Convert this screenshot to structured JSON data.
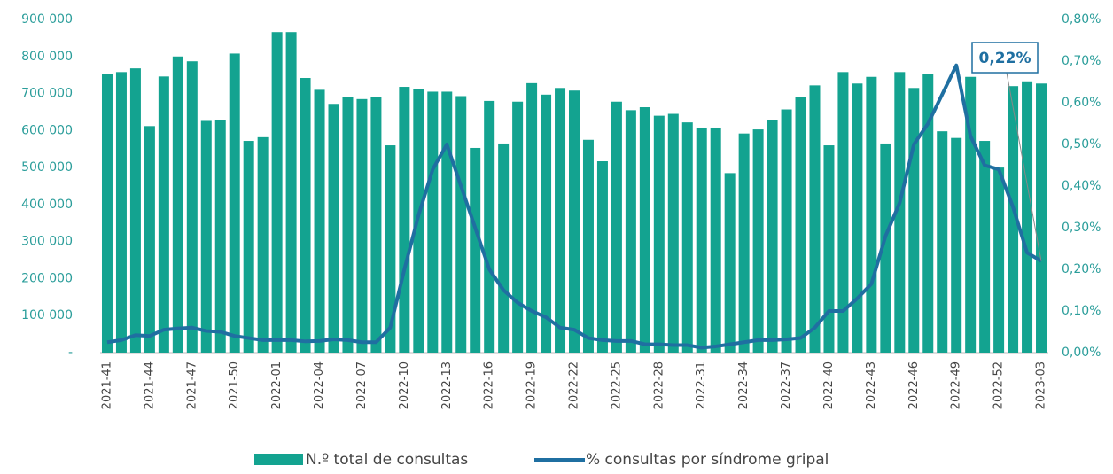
{
  "chart_data": {
    "type": "bar_line",
    "categories": [
      "2021-41",
      null,
      null,
      "2021-44",
      null,
      null,
      "2021-47",
      null,
      null,
      "2021-50",
      null,
      null,
      "2022-01",
      null,
      null,
      "2022-04",
      null,
      null,
      "2022-07",
      null,
      null,
      "2022-10",
      null,
      null,
      "2022-13",
      null,
      null,
      "2022-16",
      null,
      null,
      "2022-19",
      null,
      null,
      "2022-22",
      null,
      null,
      "2022-25",
      null,
      null,
      "2022-28",
      null,
      null,
      "2022-31",
      null,
      null,
      "2022-34",
      null,
      null,
      "2022-37",
      null,
      null,
      "2022-40",
      null,
      null,
      "2022-43",
      null,
      null,
      "2022-46",
      null,
      null,
      "2022-49",
      null,
      null,
      "2022-52",
      null,
      null,
      "2023-03"
    ],
    "series": [
      {
        "name": "N.º total de consultas",
        "type": "bar",
        "color": "#13a390",
        "axis": "y",
        "values": [
          752000,
          758000,
          768000,
          612000,
          746000,
          800000,
          787000,
          626000,
          628000,
          808000,
          572000,
          582000,
          866000,
          866000,
          742000,
          710000,
          672000,
          690000,
          685000,
          690000,
          560000,
          718000,
          712000,
          705000,
          705000,
          693000,
          553000,
          680000,
          565000,
          678000,
          728000,
          697000,
          715000,
          708000,
          575000,
          517000,
          678000,
          655000,
          663000,
          640000,
          645000,
          622000,
          608000,
          608000,
          485000,
          592000,
          603000,
          628000,
          657000,
          690000,
          722000,
          560000,
          758000,
          727000,
          745000,
          565000,
          758000,
          715000,
          752000,
          598000,
          580000,
          745000,
          572000,
          500000,
          720000,
          733000,
          727000
        ]
      },
      {
        "name": "% consultas por síndrome gripal",
        "type": "line",
        "color": "#1f6fa1",
        "axis": "y2",
        "values": [
          0.025,
          0.03,
          0.042,
          0.04,
          0.055,
          0.058,
          0.06,
          0.052,
          0.05,
          0.04,
          0.035,
          0.03,
          0.03,
          0.03,
          0.027,
          0.028,
          0.032,
          0.03,
          0.025,
          0.025,
          0.06,
          0.2,
          0.33,
          0.44,
          0.5,
          0.4,
          0.3,
          0.2,
          0.15,
          0.12,
          0.1,
          0.085,
          0.06,
          0.055,
          0.035,
          0.03,
          0.028,
          0.028,
          0.02,
          0.02,
          0.018,
          0.018,
          0.012,
          0.015,
          0.02,
          0.025,
          0.03,
          0.03,
          0.032,
          0.035,
          0.06,
          0.1,
          0.1,
          0.13,
          0.165,
          0.28,
          0.36,
          0.5,
          0.55,
          0.62,
          0.69,
          0.52,
          0.45,
          0.44,
          0.35,
          0.24,
          0.22
        ]
      }
    ],
    "ylim": [
      0,
      900000
    ],
    "yticks": [
      {
        "value": 0,
        "label": "-"
      },
      {
        "value": 100000,
        "label": "100 000"
      },
      {
        "value": 200000,
        "label": "200 000"
      },
      {
        "value": 300000,
        "label": "300 000"
      },
      {
        "value": 400000,
        "label": "400 000"
      },
      {
        "value": 500000,
        "label": "500 000"
      },
      {
        "value": 600000,
        "label": "600 000"
      },
      {
        "value": 700000,
        "label": "700 000"
      },
      {
        "value": 800000,
        "label": "800 000"
      },
      {
        "value": 900000,
        "label": "900 000"
      }
    ],
    "y2lim": [
      0,
      0.8
    ],
    "y2ticks": [
      {
        "value": 0,
        "label": "0,00%"
      },
      {
        "value": 0.1,
        "label": "0,10%"
      },
      {
        "value": 0.2,
        "label": "0,20%"
      },
      {
        "value": 0.3,
        "label": "0,30%"
      },
      {
        "value": 0.4,
        "label": "0,40%"
      },
      {
        "value": 0.5,
        "label": "0,50%"
      },
      {
        "value": 0.6,
        "label": "0,60%"
      },
      {
        "value": 0.7,
        "label": "0,70%"
      },
      {
        "value": 0.8,
        "label": "0,80%"
      }
    ],
    "annotation": "0,22%",
    "legend": "bottom"
  }
}
